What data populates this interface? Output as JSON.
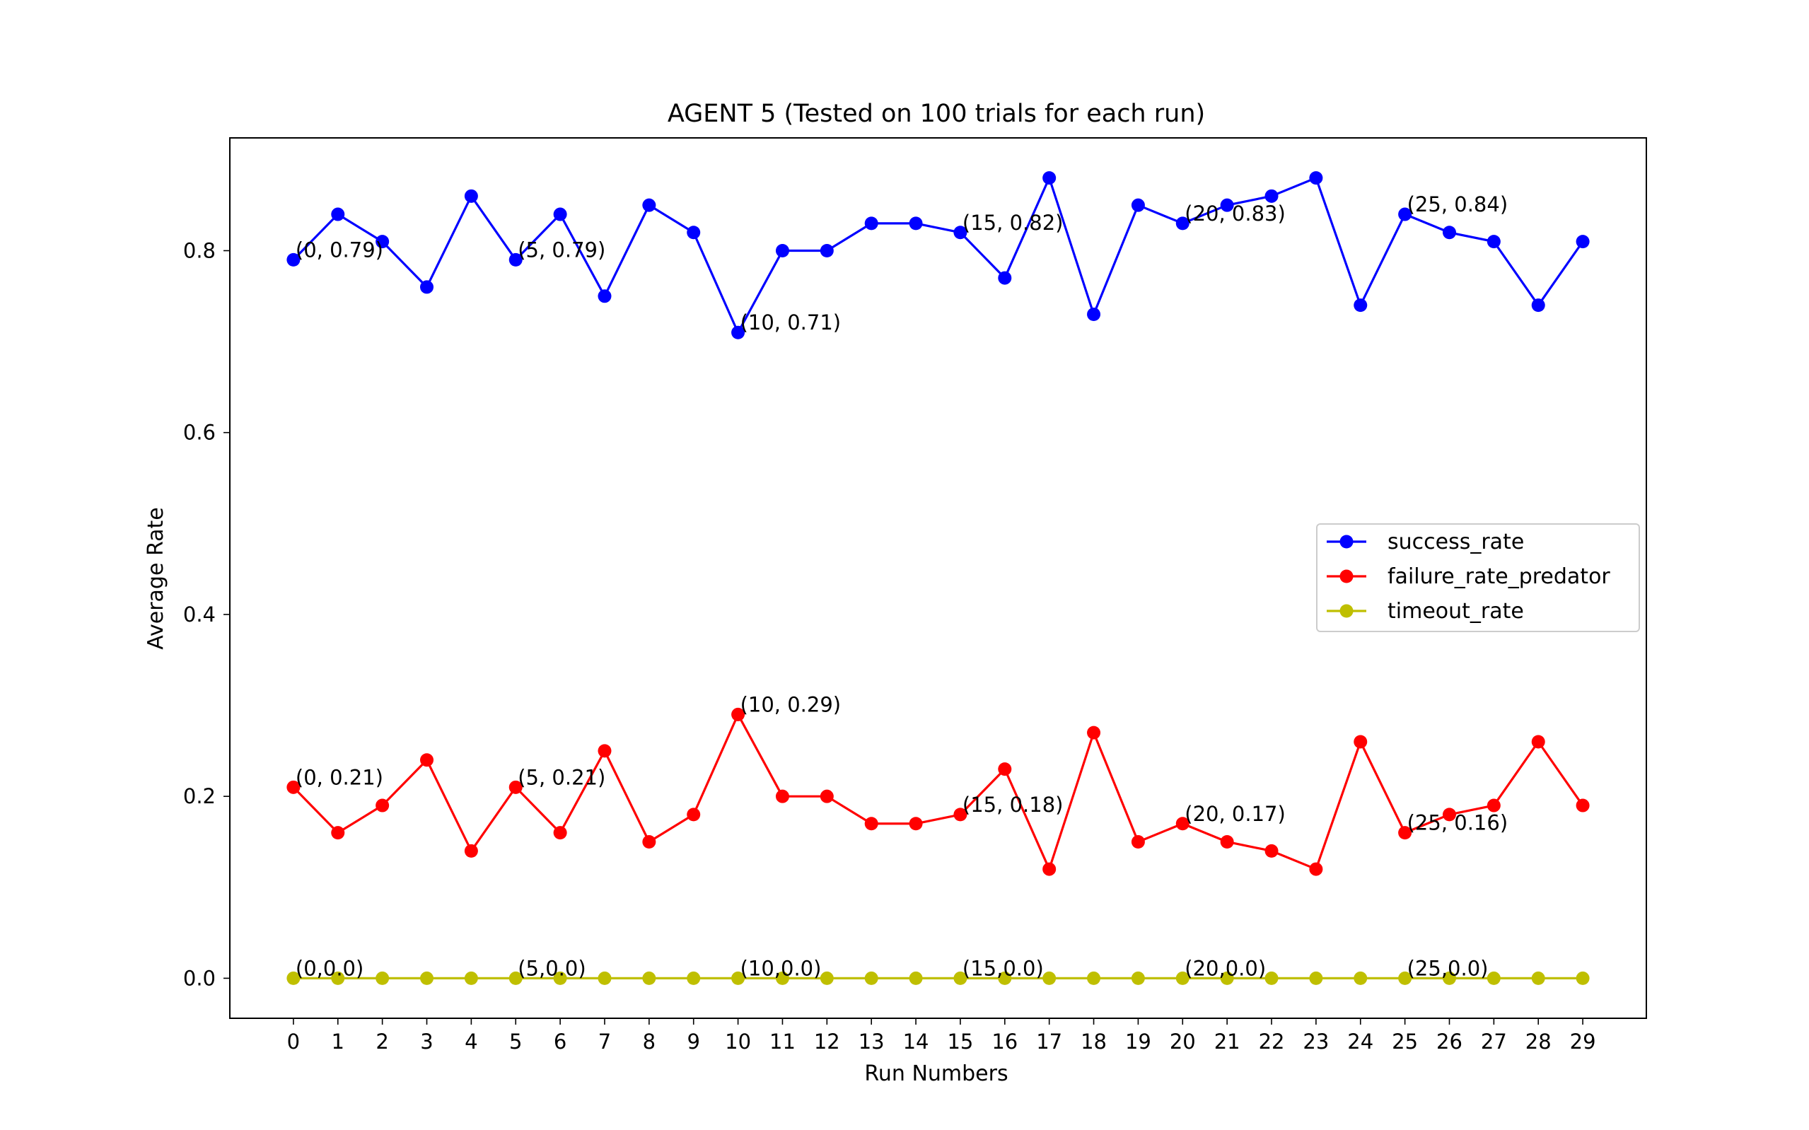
{
  "chart_data": {
    "type": "line",
    "title": "AGENT 5 (Tested on 100 trials for each run)",
    "xlabel": "Run Numbers",
    "ylabel": "Average Rate",
    "x": [
      0,
      1,
      2,
      3,
      4,
      5,
      6,
      7,
      8,
      9,
      10,
      11,
      12,
      13,
      14,
      15,
      16,
      17,
      18,
      19,
      20,
      21,
      22,
      23,
      24,
      25,
      26,
      27,
      28,
      29
    ],
    "xlim": [
      -1.43,
      30.43
    ],
    "ylim": [
      -0.044,
      0.924
    ],
    "yticks": [
      0.0,
      0.2,
      0.4,
      0.6,
      0.8
    ],
    "ytick_labels": [
      "0.0",
      "0.2",
      "0.4",
      "0.6",
      "0.8"
    ],
    "xtick_labels": [
      "0",
      "1",
      "2",
      "3",
      "4",
      "5",
      "6",
      "7",
      "8",
      "9",
      "10",
      "11",
      "12",
      "13",
      "14",
      "15",
      "16",
      "17",
      "18",
      "19",
      "20",
      "21",
      "22",
      "23",
      "24",
      "25",
      "26",
      "27",
      "28",
      "29"
    ],
    "grid": false,
    "legend_position": "center-right",
    "series": [
      {
        "name": "success_rate",
        "color": "#0000ff",
        "values": [
          0.79,
          0.84,
          0.81,
          0.76,
          0.86,
          0.79,
          0.84,
          0.75,
          0.85,
          0.82,
          0.71,
          0.8,
          0.8,
          0.83,
          0.83,
          0.82,
          0.77,
          0.88,
          0.73,
          0.85,
          0.83,
          0.85,
          0.86,
          0.88,
          0.74,
          0.84,
          0.82,
          0.81,
          0.74,
          0.81
        ]
      },
      {
        "name": "failure_rate_predator",
        "color": "#ff0000",
        "values": [
          0.21,
          0.16,
          0.19,
          0.24,
          0.14,
          0.21,
          0.16,
          0.25,
          0.15,
          0.18,
          0.29,
          0.2,
          0.2,
          0.17,
          0.17,
          0.18,
          0.23,
          0.12,
          0.27,
          0.15,
          0.17,
          0.15,
          0.14,
          0.12,
          0.26,
          0.16,
          0.18,
          0.19,
          0.26,
          0.19
        ]
      },
      {
        "name": "timeout_rate",
        "color": "#bfbf00",
        "values": [
          0,
          0,
          0,
          0,
          0,
          0,
          0,
          0,
          0,
          0,
          0,
          0,
          0,
          0,
          0,
          0,
          0,
          0,
          0,
          0,
          0,
          0,
          0,
          0,
          0,
          0,
          0,
          0,
          0,
          0
        ]
      }
    ],
    "annotations": [
      {
        "x": 0,
        "y": 0.79,
        "text": "(0, 0.79)"
      },
      {
        "x": 5,
        "y": 0.79,
        "text": "(5, 0.79)"
      },
      {
        "x": 10,
        "y": 0.71,
        "text": "(10, 0.71)"
      },
      {
        "x": 15,
        "y": 0.82,
        "text": "(15, 0.82)"
      },
      {
        "x": 20,
        "y": 0.83,
        "text": "(20, 0.83)"
      },
      {
        "x": 25,
        "y": 0.84,
        "text": "(25, 0.84)"
      },
      {
        "x": 0,
        "y": 0.21,
        "text": "(0, 0.21)"
      },
      {
        "x": 5,
        "y": 0.21,
        "text": "(5, 0.21)"
      },
      {
        "x": 10,
        "y": 0.29,
        "text": "(10, 0.29)"
      },
      {
        "x": 15,
        "y": 0.18,
        "text": "(15, 0.18)"
      },
      {
        "x": 20,
        "y": 0.17,
        "text": "(20, 0.17)"
      },
      {
        "x": 25,
        "y": 0.16,
        "text": "(25, 0.16)"
      },
      {
        "x": 0,
        "y": 0.0,
        "text": "(0,0.0)"
      },
      {
        "x": 5,
        "y": 0.0,
        "text": "(5,0.0)"
      },
      {
        "x": 10,
        "y": 0.0,
        "text": "(10,0.0)"
      },
      {
        "x": 15,
        "y": 0.0,
        "text": "(15,0.0)"
      },
      {
        "x": 20,
        "y": 0.0,
        "text": "(20,0.0)"
      },
      {
        "x": 25,
        "y": 0.0,
        "text": "(25,0.0)"
      }
    ]
  }
}
